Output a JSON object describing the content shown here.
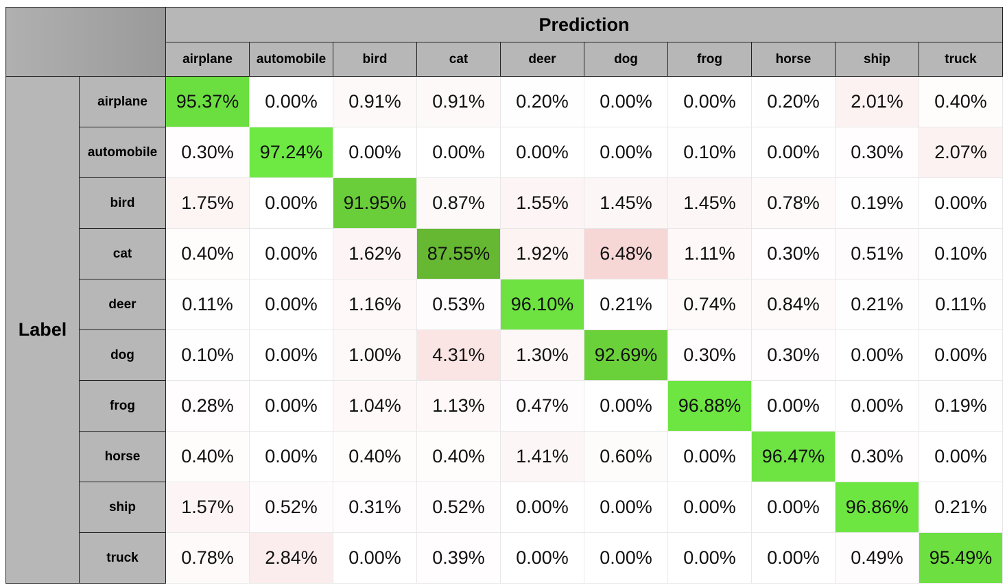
{
  "chart_data": {
    "type": "heatmap",
    "title": "Prediction",
    "ylabel": "Label",
    "columns": [
      "airplane",
      "automobile",
      "bird",
      "cat",
      "deer",
      "dog",
      "frog",
      "horse",
      "ship",
      "truck"
    ],
    "rows": [
      {
        "label": "airplane",
        "values": [
          "95.37%",
          "0.00%",
          "0.91%",
          "0.91%",
          "0.20%",
          "0.00%",
          "0.00%",
          "0.20%",
          "2.01%",
          "0.40%"
        ]
      },
      {
        "label": "automobile",
        "values": [
          "0.30%",
          "97.24%",
          "0.00%",
          "0.00%",
          "0.00%",
          "0.00%",
          "0.10%",
          "0.00%",
          "0.30%",
          "2.07%"
        ]
      },
      {
        "label": "bird",
        "values": [
          "1.75%",
          "0.00%",
          "91.95%",
          "0.87%",
          "1.55%",
          "1.45%",
          "1.45%",
          "0.78%",
          "0.19%",
          "0.00%"
        ]
      },
      {
        "label": "cat",
        "values": [
          "0.40%",
          "0.00%",
          "1.62%",
          "87.55%",
          "1.92%",
          "6.48%",
          "1.11%",
          "0.30%",
          "0.51%",
          "0.10%"
        ]
      },
      {
        "label": "deer",
        "values": [
          "0.11%",
          "0.00%",
          "1.16%",
          "0.53%",
          "96.10%",
          "0.21%",
          "0.74%",
          "0.84%",
          "0.21%",
          "0.11%"
        ]
      },
      {
        "label": "dog",
        "values": [
          "0.10%",
          "0.00%",
          "1.00%",
          "4.31%",
          "1.30%",
          "92.69%",
          "0.30%",
          "0.30%",
          "0.00%",
          "0.00%"
        ]
      },
      {
        "label": "frog",
        "values": [
          "0.28%",
          "0.00%",
          "1.04%",
          "1.13%",
          "0.47%",
          "0.00%",
          "96.88%",
          "0.00%",
          "0.00%",
          "0.19%"
        ]
      },
      {
        "label": "horse",
        "values": [
          "0.40%",
          "0.00%",
          "0.40%",
          "0.40%",
          "1.41%",
          "0.60%",
          "0.00%",
          "96.47%",
          "0.30%",
          "0.00%"
        ]
      },
      {
        "label": "ship",
        "values": [
          "1.57%",
          "0.52%",
          "0.31%",
          "0.52%",
          "0.00%",
          "0.00%",
          "0.00%",
          "0.00%",
          "96.86%",
          "0.21%"
        ]
      },
      {
        "label": "truck",
        "values": [
          "0.78%",
          "2.84%",
          "0.00%",
          "0.39%",
          "0.00%",
          "0.00%",
          "0.00%",
          "0.00%",
          "0.49%",
          "95.49%"
        ]
      }
    ],
    "colors": {
      "diagonal_high": "#6ee843",
      "diagonal_low": "#66b832",
      "off_diagonal_max": "#f7d6d6",
      "header_bg": "#b7b7b7"
    }
  }
}
